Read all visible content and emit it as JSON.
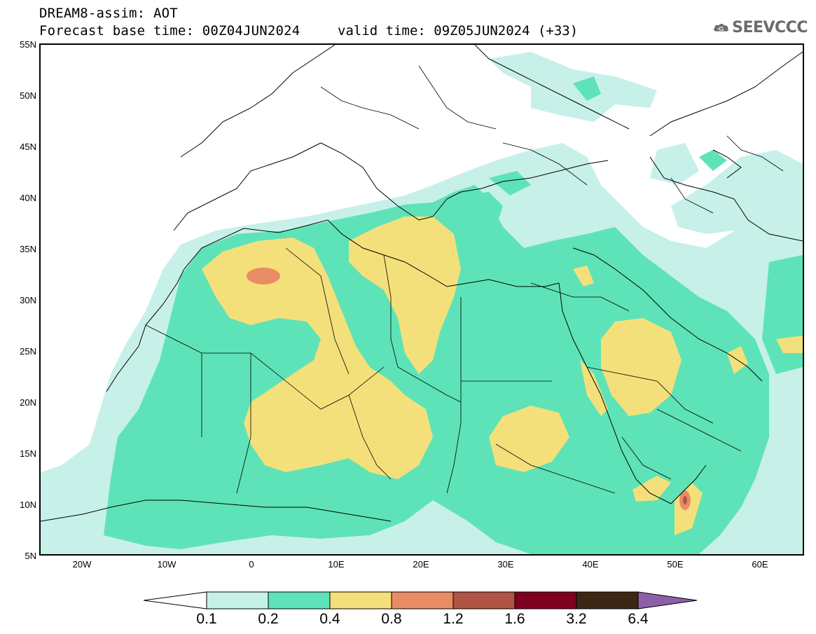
{
  "header": {
    "title": "DREAM8-assim: AOT",
    "base_time": "Forecast base time: 00Z04JUN2024",
    "valid_time": "valid time: 09Z05JUN2024 (+33)"
  },
  "logo": {
    "text": "SEEVCCC",
    "icon": "cloud-logo-icon"
  },
  "map": {
    "lat_labels": [
      "55N",
      "50N",
      "45N",
      "40N",
      "35N",
      "30N",
      "25N",
      "20N",
      "15N",
      "10N",
      "5N"
    ],
    "lon_labels": [
      "20W",
      "10W",
      "0",
      "10E",
      "20E",
      "30E",
      "40E",
      "50E",
      "60E"
    ],
    "lat_range": [
      5,
      55
    ],
    "lon_range": [
      -25,
      65
    ],
    "layer": "Aerosol optical thickness"
  },
  "colorbar": {
    "labels": [
      "0.1",
      "0.2",
      "0.4",
      "0.8",
      "1.2",
      "1.6",
      "3.2",
      "6.4"
    ],
    "colors": [
      "#ffffff",
      "#c7f0e9",
      "#5ee3b8",
      "#f4e07a",
      "#e98c66",
      "#b05445",
      "#800020",
      "#3d2714",
      "#8d5fa8"
    ]
  }
}
